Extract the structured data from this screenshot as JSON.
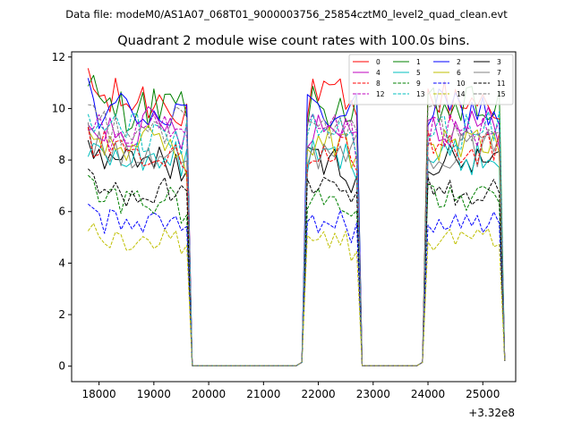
{
  "suptitle": "Data file: modeM0/AS1A07_068T01_9000003756_25854cztM0_level2_quad_clean.evt",
  "chart_data": {
    "type": "line",
    "title": "Quadrant 2 module wise count rates with 100.0s bins.",
    "xlabel": "",
    "ylabel": "",
    "x_offset_label": "+3.32e8",
    "xlim": [
      17500,
      25600
    ],
    "ylim": [
      -0.6,
      12.2
    ],
    "x_ticks": [
      18000,
      19000,
      20000,
      21000,
      22000,
      23000,
      24000,
      25000
    ],
    "x_tick_labels": [
      "18000",
      "19000",
      "20000",
      "21000",
      "22000",
      "23000",
      "24000",
      "25000"
    ],
    "y_ticks": [
      0,
      2,
      4,
      6,
      8,
      10,
      12
    ],
    "y_tick_labels": [
      "0",
      "2",
      "4",
      "6",
      "8",
      "10",
      "12"
    ],
    "legend_position": "top-right",
    "legend_columns": 4,
    "segments": [
      {
        "x_start": 17800,
        "x_end": 19600
      },
      {
        "x_start": 21800,
        "x_end": 22700
      },
      {
        "x_start": 24000,
        "x_end": 25300
      }
    ],
    "series": [
      {
        "name": "0",
        "color": "#ff0000",
        "dash": "solid",
        "level": 10.3
      },
      {
        "name": "1",
        "color": "#008000",
        "dash": "solid",
        "level": 10.0
      },
      {
        "name": "2",
        "color": "#0000ff",
        "dash": "solid",
        "level": 9.9
      },
      {
        "name": "3",
        "color": "#000000",
        "dash": "solid",
        "level": 7.9
      },
      {
        "name": "4",
        "color": "#bf00bf",
        "dash": "solid",
        "level": 9.3
      },
      {
        "name": "5",
        "color": "#00bfbf",
        "dash": "solid",
        "level": 8.1
      },
      {
        "name": "6",
        "color": "#bfbf00",
        "dash": "solid",
        "level": 8.6
      },
      {
        "name": "7",
        "color": "#808080",
        "dash": "solid",
        "level": 8.4
      },
      {
        "name": "8",
        "color": "#ff0000",
        "dash": "dashed",
        "level": 8.5
      },
      {
        "name": "9",
        "color": "#008000",
        "dash": "dashed",
        "level": 6.5
      },
      {
        "name": "10",
        "color": "#0000ff",
        "dash": "dashed",
        "level": 5.6
      },
      {
        "name": "11",
        "color": "#000000",
        "dash": "dashed",
        "level": 6.8
      },
      {
        "name": "12",
        "color": "#bf00bf",
        "dash": "dashed",
        "level": 9.0
      },
      {
        "name": "13",
        "color": "#00bfbf",
        "dash": "dashed",
        "level": 9.1
      },
      {
        "name": "14",
        "color": "#bfbf00",
        "dash": "dashed",
        "level": 4.9
      },
      {
        "name": "15",
        "color": "#808080",
        "dash": "dashed",
        "level": 9.4
      }
    ]
  }
}
